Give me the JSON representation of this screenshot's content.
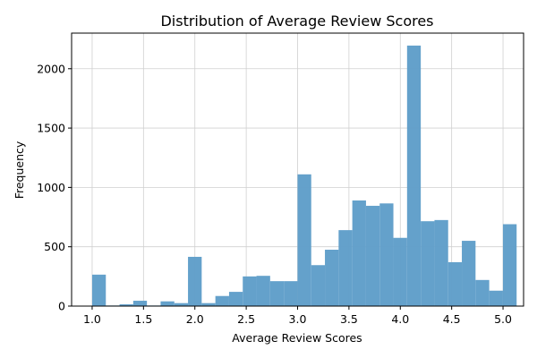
{
  "chart_data": {
    "type": "bar",
    "title": "Distribution of Average Review Scores",
    "xlabel": "Average Review Scores",
    "ylabel": "Frequency",
    "xlim": [
      0.8,
      5.2
    ],
    "ylim": [
      0,
      2300
    ],
    "xticks": [
      1.0,
      1.5,
      2.0,
      2.5,
      3.0,
      3.5,
      4.0,
      4.5,
      5.0
    ],
    "xtick_labels": [
      "1.0",
      "1.5",
      "2.0",
      "2.5",
      "3.0",
      "3.5",
      "4.0",
      "4.5",
      "5.0"
    ],
    "yticks": [
      0,
      500,
      1000,
      1500,
      2000
    ],
    "ytick_labels": [
      "0",
      "500",
      "1000",
      "1500",
      "2000"
    ],
    "grid": true,
    "color": "#5f9ec9",
    "bins": {
      "start": 1.0,
      "width": 0.1333,
      "values": [
        265,
        5,
        15,
        45,
        5,
        40,
        25,
        415,
        25,
        85,
        120,
        250,
        255,
        210,
        210,
        1110,
        345,
        475,
        640,
        890,
        845,
        865,
        575,
        2195,
        715,
        725,
        370,
        550,
        220,
        130,
        690
      ]
    }
  }
}
